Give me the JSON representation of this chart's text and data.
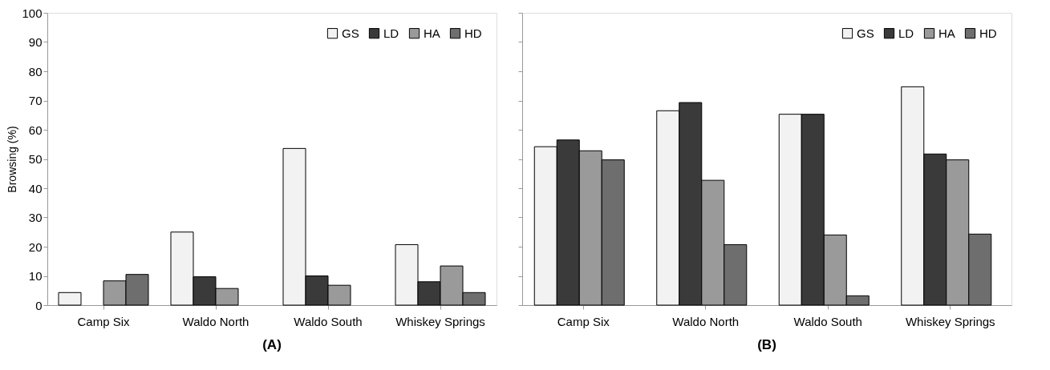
{
  "chart_data": [
    {
      "type": "bar",
      "title": "(A)",
      "ylabel": "Browsing (%)",
      "categories": [
        "Camp Six",
        "Waldo North",
        "Waldo South",
        "Whiskey Springs"
      ],
      "series": [
        {
          "name": "GS",
          "color": "#f2f2f2",
          "values": [
            4.3,
            25,
            53.6,
            20.7
          ]
        },
        {
          "name": "LD",
          "color": "#3a3a3a",
          "values": [
            null,
            9.7,
            10,
            8
          ]
        },
        {
          "name": "HA",
          "color": "#9a9a9a",
          "values": [
            8.3,
            5.7,
            6.8,
            13.4
          ]
        },
        {
          "name": "HD",
          "color": "#6e6e6e",
          "values": [
            10.5,
            null,
            null,
            4.3
          ]
        }
      ],
      "ylim": [
        0,
        100
      ],
      "yticks": [
        0,
        10,
        20,
        30,
        40,
        50,
        60,
        70,
        80,
        90,
        100
      ],
      "grid": false,
      "legend": "top right"
    },
    {
      "type": "bar",
      "title": "(B)",
      "categories": [
        "Camp Six",
        "Waldo North",
        "Waldo South",
        "Whiskey Springs"
      ],
      "series": [
        {
          "name": "GS",
          "color": "#f2f2f2",
          "values": [
            54.2,
            66.5,
            65.3,
            74.7
          ]
        },
        {
          "name": "LD",
          "color": "#3a3a3a",
          "values": [
            56.5,
            69.3,
            65.3,
            51.7
          ]
        },
        {
          "name": "HA",
          "color": "#9a9a9a",
          "values": [
            52.8,
            42.7,
            24,
            49.7
          ]
        },
        {
          "name": "HD",
          "color": "#6e6e6e",
          "values": [
            49.7,
            20.7,
            3.2,
            24.3
          ]
        }
      ],
      "ylim": [
        0,
        100
      ],
      "yticks": [
        0,
        10,
        20,
        30,
        40,
        50,
        60,
        70,
        80,
        90,
        100
      ],
      "grid": false,
      "legend": "top right",
      "tick_labels": "x"
    }
  ]
}
